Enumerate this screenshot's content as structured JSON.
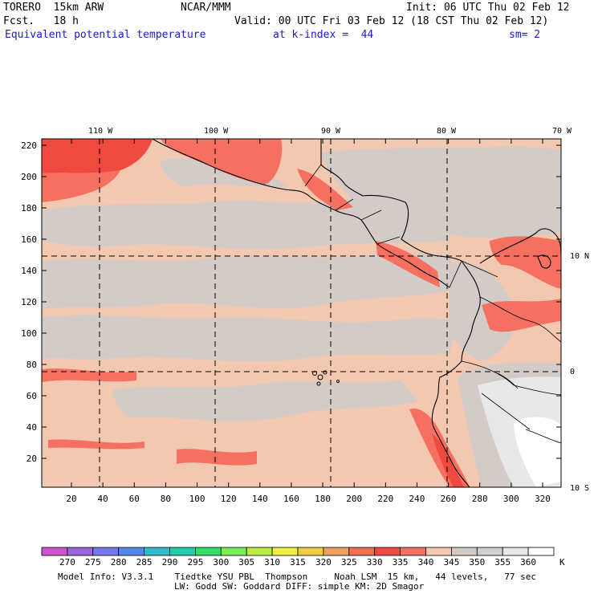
{
  "header": {
    "model": "TORERO  15km ARW",
    "center": "NCAR/MMM",
    "init": "Init: 06 UTC Thu 02 Feb 12",
    "fcst": "Fcst.   18 h",
    "valid": "Valid: 00 UTC Fri 03 Feb 12 (18 CST Thu 02 Feb 12)",
    "field": "Equivalent potential temperature",
    "level": "at k-index =  44",
    "smooth": "sm= 2"
  },
  "map": {
    "x_ticks": [
      "20",
      "40",
      "60",
      "80",
      "100",
      "120",
      "140",
      "160",
      "180",
      "200",
      "220",
      "240",
      "260",
      "280",
      "300",
      "320"
    ],
    "y_ticks": [
      "20",
      "40",
      "60",
      "80",
      "100",
      "120",
      "140",
      "160",
      "180",
      "200",
      "220"
    ],
    "lon_labels": [
      "110 W",
      "100 W",
      "90 W",
      "80 W",
      "70 W"
    ],
    "lat_labels": [
      "10 N",
      "0",
      "10 S"
    ]
  },
  "colorbar": {
    "levels": [
      "270",
      "275",
      "280",
      "285",
      "290",
      "295",
      "300",
      "305",
      "310",
      "315",
      "320",
      "325",
      "330",
      "335",
      "340",
      "345",
      "350",
      "355",
      "360"
    ],
    "unit": "K",
    "colors": [
      "#cc55cc",
      "#9966dd",
      "#7777ee",
      "#5588ee",
      "#33bbcc",
      "#22ccaa",
      "#33dd66",
      "#77ee55",
      "#bbee44",
      "#eeee44",
      "#eecc44",
      "#f0a060",
      "#f07050",
      "#f04a40",
      "#f57060",
      "#f3c8b0",
      "#d2cbc8",
      "#cfcfcf",
      "#e8e8e8",
      "#ffffff"
    ]
  },
  "footer": {
    "line1": "Model Info: V3.3.1    Tiedtke YSU PBL  Thompson     Noah LSM  15 km,   44 levels,   77 sec",
    "line2": "LW: Godd SW: Goddard DIFF: simple KM: 2D Smagor"
  }
}
